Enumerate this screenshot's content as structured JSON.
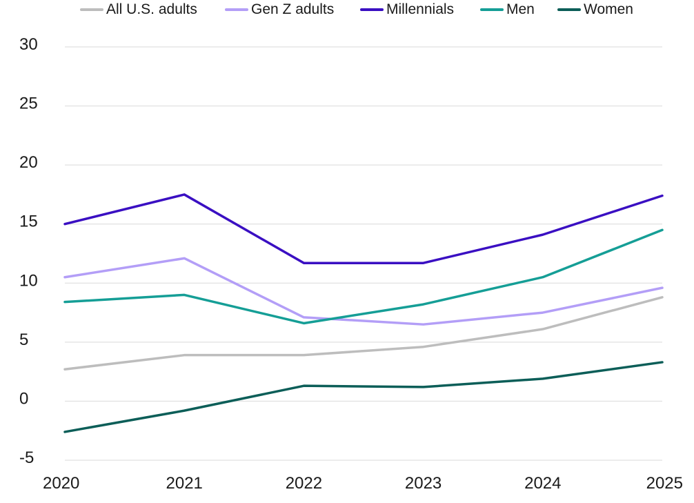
{
  "chart_data": {
    "type": "line",
    "title": "",
    "xlabel": "",
    "ylabel": "",
    "categories": [
      "2020",
      "2021",
      "2022",
      "2023",
      "2024",
      "2025"
    ],
    "ylim": [
      -5,
      30
    ],
    "yticks": [
      "-5",
      "0",
      "5",
      "10",
      "15",
      "20",
      "25",
      "30"
    ],
    "grid": "horizontal",
    "legend_position": "top",
    "series": [
      {
        "name": "All U.S. adults",
        "color": "#bdbdbd",
        "values": [
          2.7,
          3.9,
          3.9,
          4.6,
          6.1,
          8.8
        ]
      },
      {
        "name": "Gen Z adults",
        "color": "#b39ef7",
        "values": [
          10.5,
          12.1,
          7.1,
          6.5,
          7.5,
          9.6
        ]
      },
      {
        "name": "Millennials",
        "color": "#3a0fc2",
        "values": [
          15.0,
          17.5,
          11.7,
          11.7,
          14.1,
          17.4
        ]
      },
      {
        "name": "Men",
        "color": "#159e96",
        "values": [
          8.4,
          9.0,
          6.6,
          8.2,
          10.5,
          14.5
        ]
      },
      {
        "name": "Women",
        "color": "#0c5e58",
        "values": [
          -2.6,
          -0.8,
          1.3,
          1.2,
          1.9,
          3.3
        ]
      }
    ]
  }
}
